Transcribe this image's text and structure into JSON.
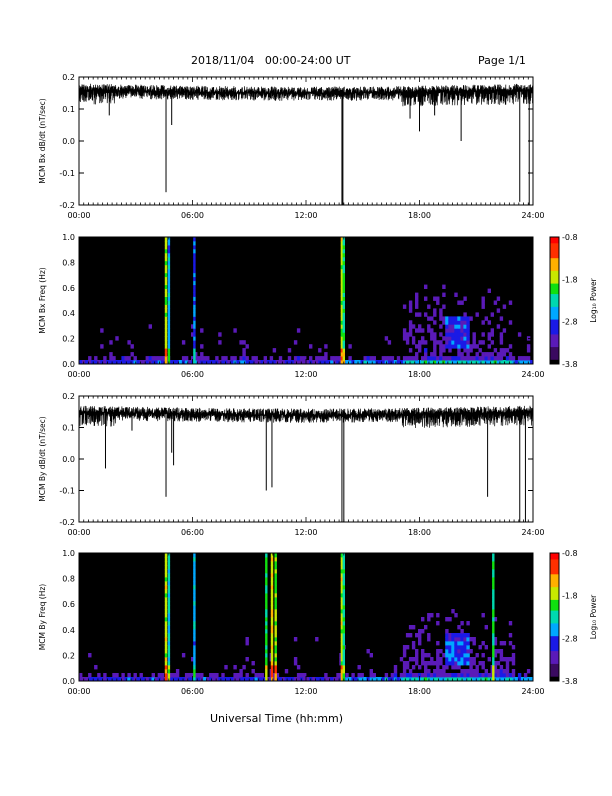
{
  "header": {
    "title": "2018/11/04   00:00-24:00 UT",
    "page": "Page 1/1"
  },
  "x_axis_label": "Universal Time (hh:mm)",
  "x_ticks": [
    "00:00",
    "06:00",
    "12:00",
    "18:00",
    "24:00"
  ],
  "colorbar": {
    "label": "Log₁₀ Power",
    "ticks": [
      "-0.8",
      "-1.8",
      "-2.8",
      "-3.8"
    ],
    "range": [
      -3.8,
      -0.8
    ],
    "colors": [
      "#000000",
      "#3a0a60",
      "#5a1ab8",
      "#1a1ae6",
      "#00a8ff",
      "#00d8b0",
      "#10e010",
      "#c8e800",
      "#ffb000",
      "#ff3000",
      "#ff0000"
    ]
  },
  "chart_data": [
    {
      "type": "line",
      "ylabel": "MCM Bx dB/dt (nT/sec)",
      "xlim": [
        0,
        24
      ],
      "ylim": [
        -0.2,
        0.2
      ],
      "yticks": [
        "0.2",
        "0.1",
        "0.0",
        "-0.1",
        "-0.2"
      ],
      "baseline": 0.16,
      "spikes": [
        [
          1.6,
          0.08
        ],
        [
          4.6,
          -0.16
        ],
        [
          4.9,
          0.05
        ],
        [
          13.9,
          -0.2
        ],
        [
          13.95,
          -0.2
        ],
        [
          17.5,
          0.07
        ],
        [
          18.0,
          0.03
        ],
        [
          18.8,
          0.08
        ],
        [
          20.2,
          0.0
        ],
        [
          23.3,
          -0.19
        ],
        [
          23.8,
          -0.2
        ]
      ],
      "color": "#000000"
    },
    {
      "type": "heatmap",
      "ylabel": "MCM Bx Freq (Hz)",
      "xlim": [
        0,
        24
      ],
      "ylim": [
        0.0,
        1.0
      ],
      "yticks": [
        "1.0",
        "0.8",
        "0.6",
        "0.4",
        "0.2",
        "0.0"
      ],
      "bright_columns": [
        [
          4.6,
          -1.6
        ],
        [
          4.75,
          -2.4
        ],
        [
          6.1,
          -2.6
        ],
        [
          13.9,
          -1.5
        ],
        [
          14.0,
          -2.0
        ]
      ]
    },
    {
      "type": "line",
      "ylabel": "MCM By dB/dt (nT/sec)",
      "xlim": [
        0,
        24
      ],
      "ylim": [
        -0.2,
        0.2
      ],
      "yticks": [
        "0.2",
        "0.1",
        "0.0",
        "-0.1",
        "-0.2"
      ],
      "baseline": 0.15,
      "spikes": [
        [
          1.4,
          -0.03
        ],
        [
          2.8,
          0.09
        ],
        [
          4.6,
          -0.12
        ],
        [
          4.9,
          0.02
        ],
        [
          5.0,
          -0.02
        ],
        [
          9.9,
          -0.1
        ],
        [
          10.2,
          -0.09
        ],
        [
          13.9,
          -0.2
        ],
        [
          14.0,
          -0.2
        ],
        [
          21.6,
          -0.12
        ],
        [
          23.3,
          -0.2
        ],
        [
          23.6,
          -0.2
        ]
      ],
      "color": "#000000"
    },
    {
      "type": "heatmap",
      "ylabel": "MCM By Freq (Hz)",
      "xlim": [
        0,
        24
      ],
      "ylim": [
        0.0,
        1.0
      ],
      "yticks": [
        "1.0",
        "0.8",
        "0.6",
        "0.4",
        "0.2",
        "0.0"
      ],
      "bright_columns": [
        [
          4.6,
          -1.5
        ],
        [
          4.75,
          -2.2
        ],
        [
          6.1,
          -2.4
        ],
        [
          9.9,
          -1.9
        ],
        [
          10.2,
          -1.4
        ],
        [
          10.4,
          -1.7
        ],
        [
          13.9,
          -1.5
        ],
        [
          14.0,
          -2.0
        ],
        [
          21.9,
          -2.0
        ]
      ]
    }
  ]
}
